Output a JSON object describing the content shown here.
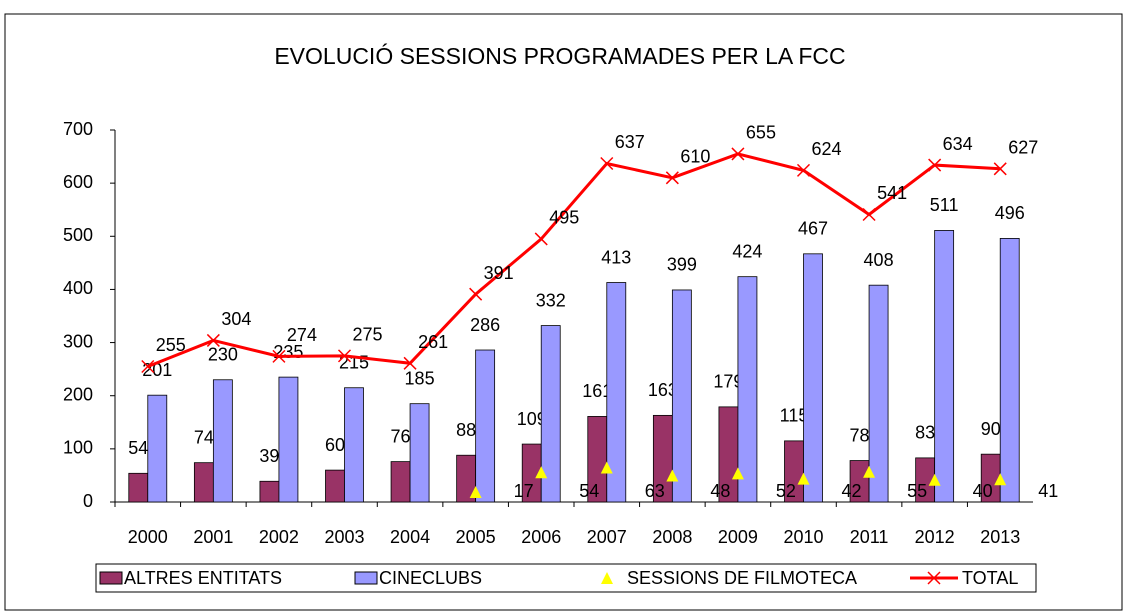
{
  "chart_data": {
    "type": "bar",
    "title": "EVOLUCIÓ SESSIONS PROGRAMADES PER LA FCC",
    "categories": [
      "2000",
      "2001",
      "2002",
      "2003",
      "2004",
      "2005",
      "2006",
      "2007",
      "2008",
      "2009",
      "2010",
      "2011",
      "2012",
      "2013"
    ],
    "series": [
      {
        "name": "ALTRES ENTITATS",
        "type": "bar",
        "color": "#993366",
        "values": [
          54,
          74,
          39,
          60,
          76,
          88,
          109,
          161,
          163,
          179,
          115,
          78,
          83,
          90
        ]
      },
      {
        "name": "CINECLUBS",
        "type": "bar",
        "color": "#9999ff",
        "values": [
          201,
          230,
          235,
          215,
          185,
          286,
          332,
          413,
          399,
          424,
          467,
          408,
          511,
          496
        ]
      },
      {
        "name": "SESSIONS DE FILMOTECA",
        "type": "scatter",
        "color": "#ffff00",
        "values": [
          null,
          null,
          null,
          null,
          null,
          17,
          54,
          63,
          48,
          52,
          42,
          55,
          40,
          41
        ]
      },
      {
        "name": "TOTAL",
        "type": "line",
        "color": "#ff0000",
        "values": [
          255,
          304,
          274,
          275,
          261,
          391,
          495,
          637,
          610,
          655,
          624,
          541,
          634,
          627
        ]
      }
    ],
    "ylim": [
      0,
      700
    ],
    "yticks": [
      0,
      100,
      200,
      300,
      400,
      500,
      600,
      700
    ],
    "grid": false,
    "legend": "bottom"
  }
}
